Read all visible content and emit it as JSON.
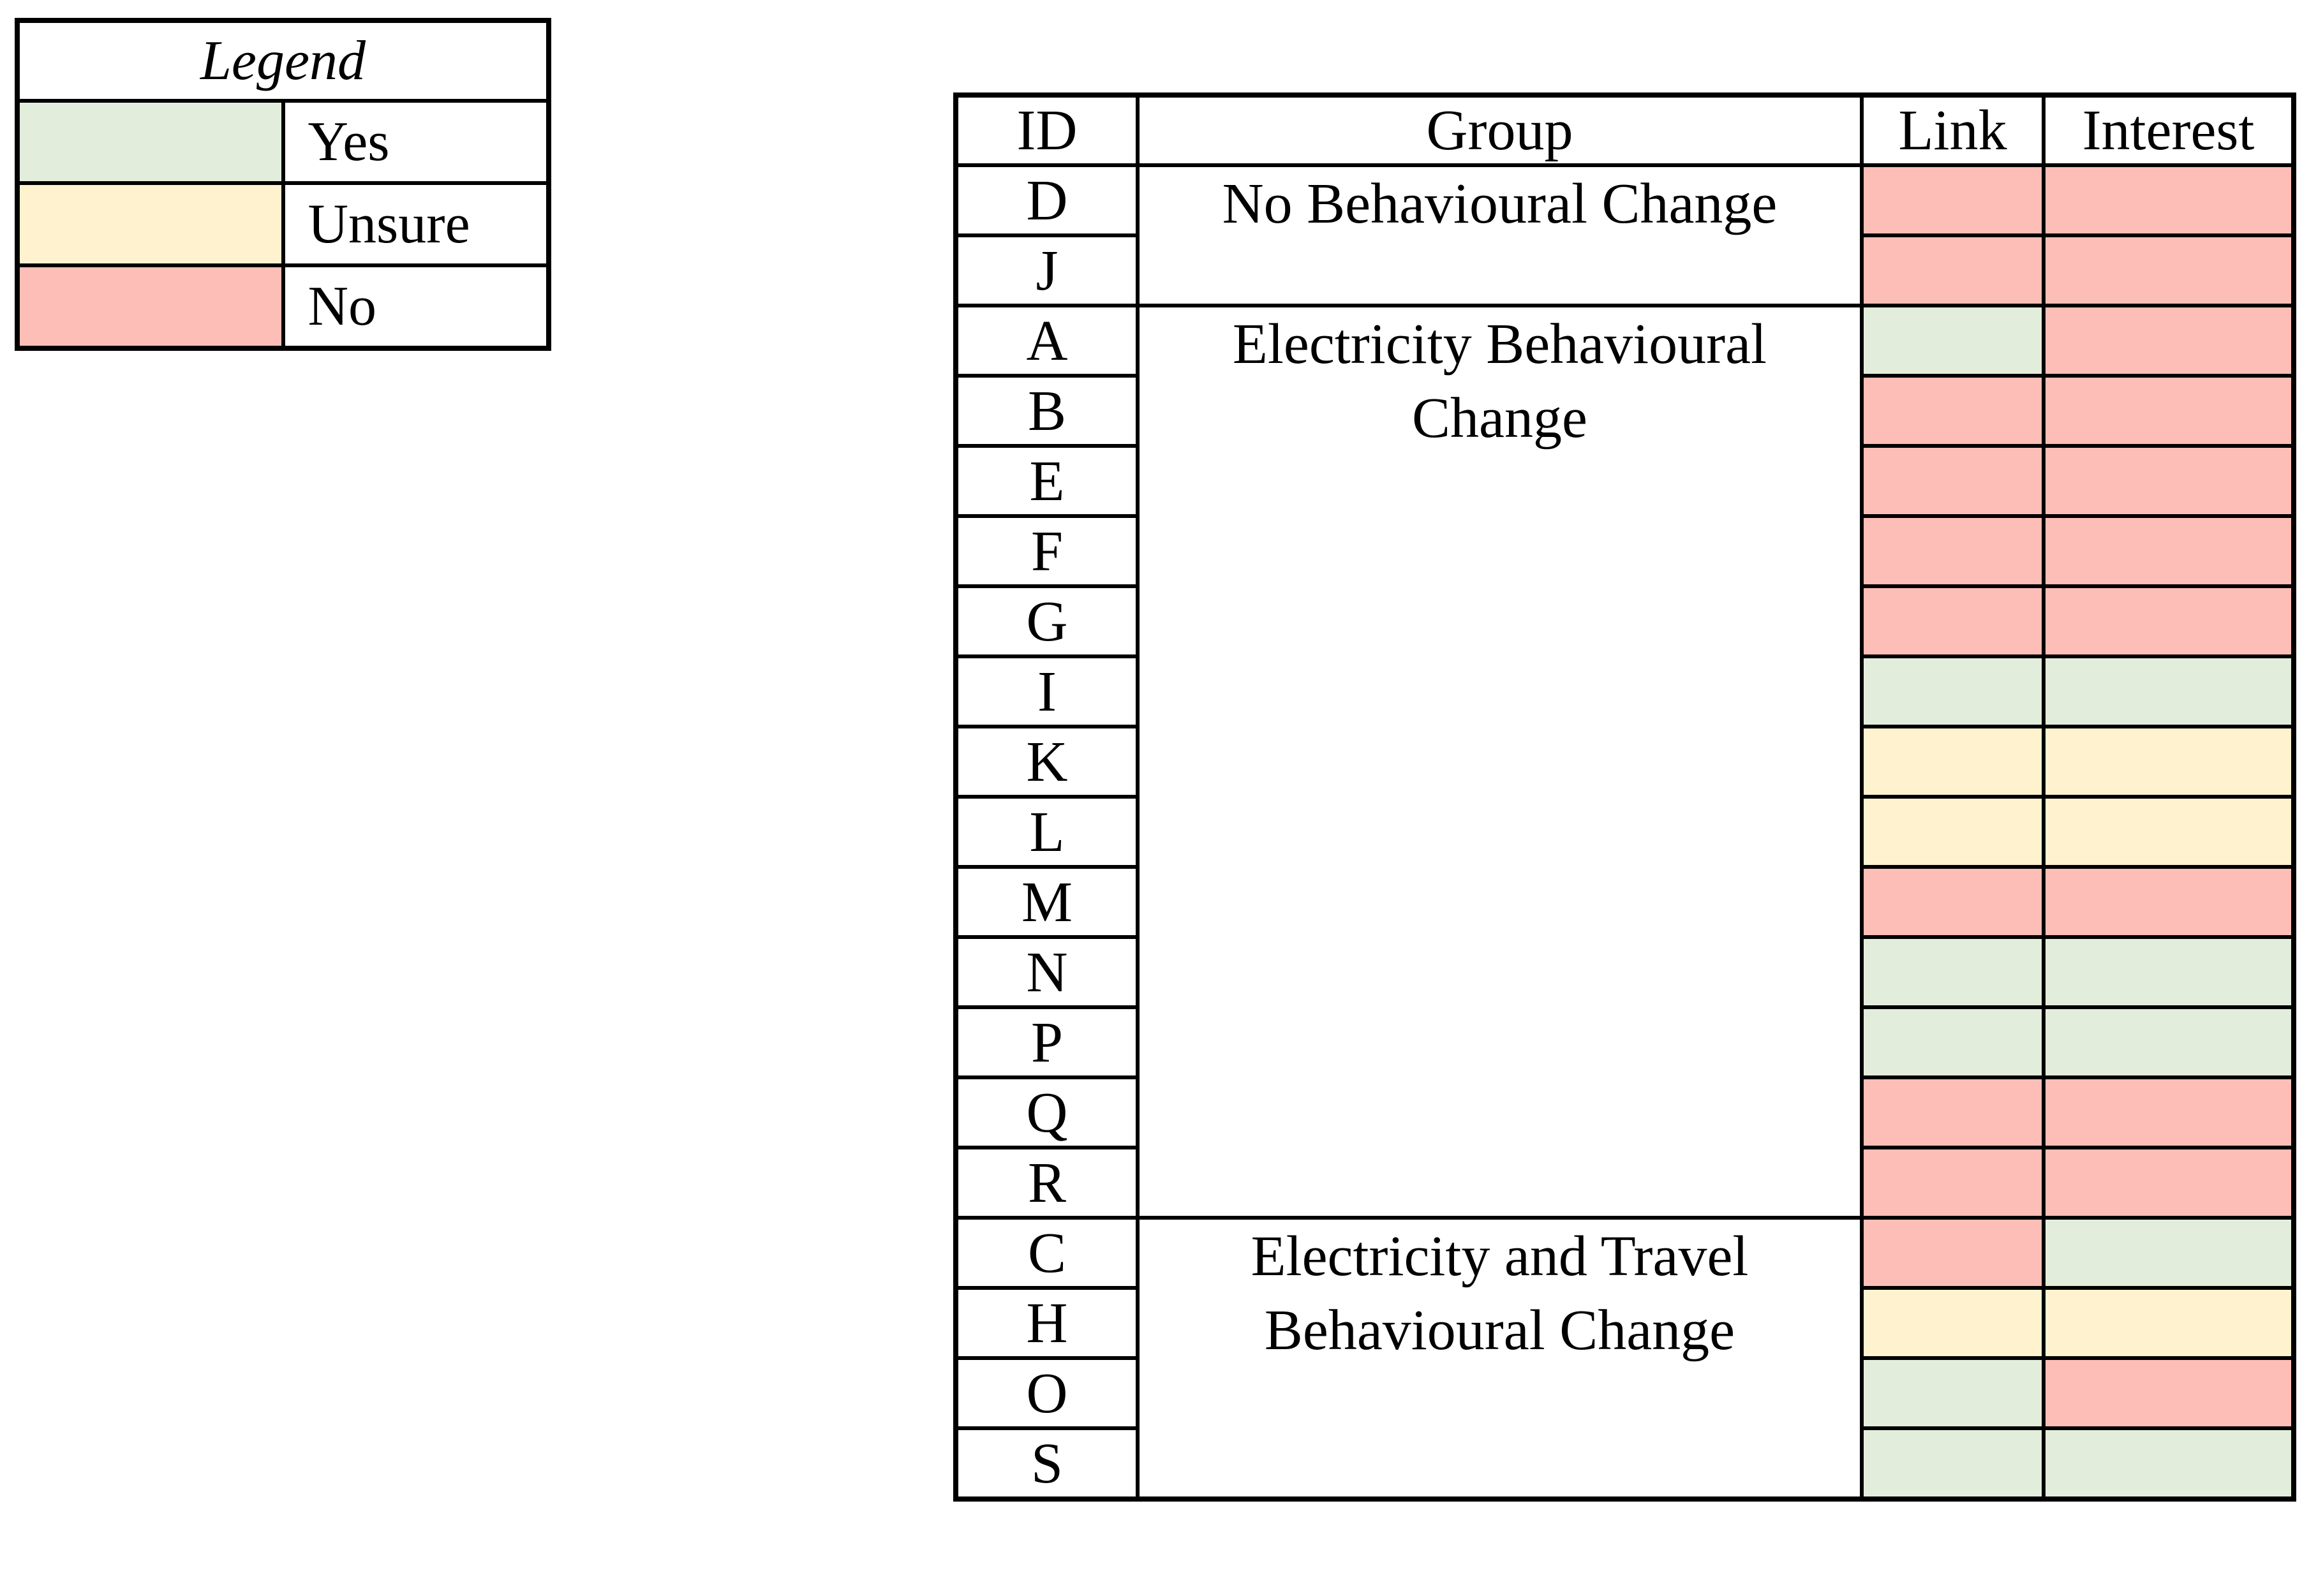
{
  "legend": {
    "title": "Legend",
    "items": [
      {
        "label": "Yes",
        "status": "yes"
      },
      {
        "label": "Unsure",
        "status": "unsure"
      },
      {
        "label": "No",
        "status": "no"
      }
    ],
    "status_colors": {
      "yes": "#E2EEDB",
      "unsure": "#FEF2CF",
      "no": "#FCBEB6"
    }
  },
  "table": {
    "headers": {
      "id": "ID",
      "group": "Group",
      "link": "Link",
      "interest": "Interest"
    },
    "groups": [
      {
        "name": "No Behavioural Change",
        "rowspan": "2"
      },
      {
        "name": "Electricity Behavioural\nChange",
        "rowspan": "13"
      },
      {
        "name": "Electricity and Travel\nBehavioural Change",
        "rowspan": "4"
      }
    ],
    "rows": [
      {
        "id": "D",
        "link": "no",
        "interest": "no"
      },
      {
        "id": "J",
        "link": "no",
        "interest": "no"
      },
      {
        "id": "A",
        "link": "yes",
        "interest": "no"
      },
      {
        "id": "B",
        "link": "no",
        "interest": "no"
      },
      {
        "id": "E",
        "link": "no",
        "interest": "no"
      },
      {
        "id": "F",
        "link": "no",
        "interest": "no"
      },
      {
        "id": "G",
        "link": "no",
        "interest": "no"
      },
      {
        "id": "I",
        "link": "yes",
        "interest": "yes"
      },
      {
        "id": "K",
        "link": "unsure",
        "interest": "unsure"
      },
      {
        "id": "L",
        "link": "unsure",
        "interest": "unsure"
      },
      {
        "id": "M",
        "link": "no",
        "interest": "no"
      },
      {
        "id": "N",
        "link": "yes",
        "interest": "yes"
      },
      {
        "id": "P",
        "link": "yes",
        "interest": "yes"
      },
      {
        "id": "Q",
        "link": "no",
        "interest": "no"
      },
      {
        "id": "R",
        "link": "no",
        "interest": "no"
      },
      {
        "id": "C",
        "link": "no",
        "interest": "yes"
      },
      {
        "id": "H",
        "link": "unsure",
        "interest": "unsure"
      },
      {
        "id": "O",
        "link": "yes",
        "interest": "no"
      },
      {
        "id": "S",
        "link": "yes",
        "interest": "yes"
      }
    ]
  }
}
